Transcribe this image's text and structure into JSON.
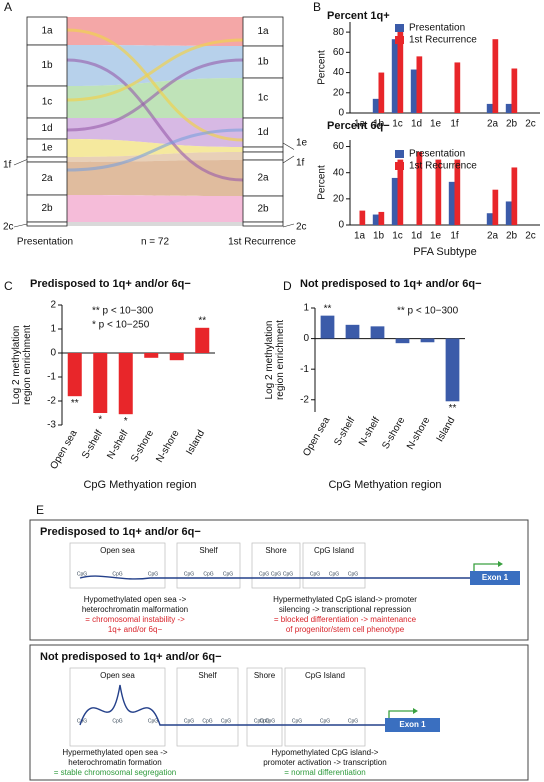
{
  "panel_labels": [
    "A",
    "B",
    "C",
    "D",
    "E"
  ],
  "sankey": {
    "left_label": "Presentation",
    "center_label": "n = 72",
    "right_label": "1st Recurrence",
    "subtypes": [
      "1a",
      "1b",
      "1c",
      "1d",
      "1e",
      "1f",
      "2a",
      "2b",
      "2c"
    ]
  },
  "chart_data": [
    {
      "type": "bar",
      "title": "Percent 1q+",
      "ylabel": [
        "Percent"
      ],
      "categories": [
        "1a",
        "1b",
        "1c",
        "1d",
        "1e",
        "1f",
        null,
        "2a",
        "2b",
        "2c"
      ],
      "series": [
        {
          "name": "Presentation",
          "color": "#3b5ba9",
          "values": [
            0,
            14,
            73,
            43,
            0,
            0,
            null,
            9,
            9,
            0
          ]
        },
        {
          "name": "1st Recurrence",
          "color": "#e8262a",
          "values": [
            0,
            40,
            88,
            56,
            0,
            50,
            null,
            73,
            44,
            0
          ]
        }
      ],
      "ylim": [
        0,
        90
      ],
      "yticks": [
        0,
        20,
        40,
        60,
        80
      ]
    },
    {
      "type": "bar",
      "title": "Percent 6q−",
      "ylabel": [
        "Percent"
      ],
      "xlabel": "PFA Subtype",
      "categories": [
        "1a",
        "1b",
        "1c",
        "1d",
        "1e",
        "1f",
        null,
        "2a",
        "2b",
        "2c"
      ],
      "series": [
        {
          "name": "Presentation",
          "color": "#3b5ba9",
          "values": [
            0,
            8,
            36,
            0,
            0,
            33,
            null,
            9,
            18,
            0
          ]
        },
        {
          "name": "1st Recurrence",
          "color": "#e8262a",
          "values": [
            11,
            10,
            50,
            56,
            50,
            50,
            null,
            27,
            44,
            0
          ]
        }
      ],
      "ylim": [
        0,
        65
      ],
      "yticks": [
        0,
        20,
        40,
        60
      ]
    },
    {
      "type": "bar",
      "title": "Predisposed to 1q+ and/or 6q−",
      "ylabel": [
        "Log 2 methylation",
        "region enrichment"
      ],
      "xlabel": "CpG Methyation region",
      "categories": [
        "Open sea",
        "S-shelf",
        "N-shelf",
        "S-shore",
        "N-shore",
        "Island"
      ],
      "values": [
        -1.8,
        -2.5,
        -2.55,
        -0.2,
        -0.3,
        1.05
      ],
      "color": "#e8262a",
      "significance": [
        "**",
        "*",
        "*",
        null,
        null,
        "**"
      ],
      "notes": [
        "** p < 10−300",
        "* p < 10−250"
      ],
      "ylim": [
        -3,
        2
      ],
      "yticks": [
        -3,
        -2,
        -1,
        0,
        1,
        2
      ]
    },
    {
      "type": "bar",
      "title": "Not predisposed to 1q+ and/or 6q−",
      "ylabel": [
        "Log 2 methylation",
        "region enrichment"
      ],
      "xlabel": "CpG Methyation region",
      "categories": [
        "Open sea",
        "S-shelf",
        "N-shelf",
        "S-shore",
        "N-shore",
        "Island"
      ],
      "values": [
        0.75,
        0.45,
        0.4,
        -0.15,
        -0.12,
        -2.05
      ],
      "color": "#3b5ba9",
      "significance": [
        "**",
        null,
        null,
        null,
        null,
        "**"
      ],
      "notes": [
        "** p < 10−300"
      ],
      "ylim": [
        -2.4,
        1
      ],
      "yticks": [
        -2,
        -1,
        0,
        1
      ]
    }
  ],
  "schematic": [
    {
      "title": "Predisposed to 1q+ and/or 6q−",
      "regions": [
        "Open sea",
        "Shelf",
        "Shore",
        "CpG Island"
      ],
      "exon": "Exon 1",
      "site": "CpG",
      "left_text": [
        "Hypomethylated open sea ->",
        "heterochromatin malformation"
      ],
      "left_outcome": [
        "= chromosomal instability ->",
        "1q+ and/or 6q−"
      ],
      "right_text": [
        "Hypermethylated CpG island-> promoter",
        "silencing -> transcriptional repression"
      ],
      "right_outcome": [
        "= blocked differentiation -> maintenance",
        "of progenitor/stem cell phenotype"
      ]
    },
    {
      "title": "Not predisposed to 1q+ and/or 6q−",
      "regions": [
        "Open sea",
        "Shelf",
        "Shore",
        "CpG Island"
      ],
      "exon": "Exon 1",
      "site": "CpG",
      "left_text": [
        "Hypermethylated open sea ->",
        "heterochromatin formation"
      ],
      "left_outcome": [
        "= stable chromosomal segregation"
      ],
      "right_text": [
        "Hypomethylated CpG island->",
        "promoter activation -> transcription"
      ],
      "right_outcome": [
        "= normal differentiation"
      ]
    }
  ]
}
